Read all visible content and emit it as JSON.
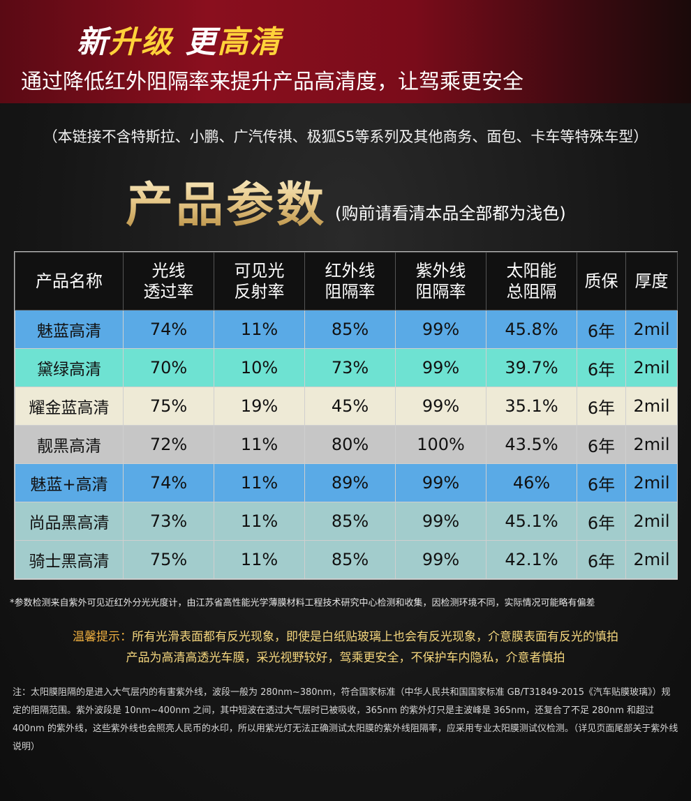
{
  "banner": {
    "title_part1": "新",
    "title_part2": "升级",
    "title_part3": "更",
    "title_part4": "高清",
    "subtitle": "通过降低红外阻隔率来提升产品高清度，让驾乘更安全"
  },
  "notice": "（本链接不含特斯拉、小鹏、广汽传祺、极狐S5等系列及其他商务、面包、卡车等特殊车型）",
  "params": {
    "title": "产品参数",
    "subtitle": "(购前请看清本品全部都为浅色)"
  },
  "table": {
    "headers": [
      [
        "产品名称",
        ""
      ],
      [
        "光线",
        "透过率"
      ],
      [
        "可见光",
        "反射率"
      ],
      [
        "红外线",
        "阻隔率"
      ],
      [
        "紫外线",
        "阻隔率"
      ],
      [
        "太阳能",
        "总阻隔"
      ],
      [
        "质保",
        ""
      ],
      [
        "厚度",
        ""
      ]
    ],
    "rows": [
      {
        "cells": [
          "魅蓝高清",
          "74%",
          "11%",
          "85%",
          "99%",
          "45.8%",
          "6年",
          "2mil"
        ],
        "color": "#5aaae6"
      },
      {
        "cells": [
          "黛绿高清",
          "70%",
          "10%",
          "73%",
          "99%",
          "39.7%",
          "6年",
          "2mil"
        ],
        "color": "#6ee2d2"
      },
      {
        "cells": [
          "耀金蓝高清",
          "75%",
          "19%",
          "45%",
          "99%",
          "35.1%",
          "6年",
          "2mil"
        ],
        "color": "#eeead6"
      },
      {
        "cells": [
          "靓黑高清",
          "72%",
          "11%",
          "80%",
          "100%",
          "43.5%",
          "6年",
          "2mil"
        ],
        "color": "#c6c6c6"
      },
      {
        "cells": [
          "魅蓝+高清",
          "74%",
          "11%",
          "89%",
          "99%",
          "46%",
          "6年",
          "2mil"
        ],
        "color": "#5aaae6"
      },
      {
        "cells": [
          "尚品黑高清",
          "73%",
          "11%",
          "85%",
          "99%",
          "45.1%",
          "6年",
          "2mil"
        ],
        "color": "#a2cccc"
      },
      {
        "cells": [
          "骑士黑高清",
          "75%",
          "11%",
          "85%",
          "99%",
          "42.1%",
          "6年",
          "2mil"
        ],
        "color": "#a2cccc"
      }
    ]
  },
  "disclaimer": "*参数检测来自紫外可见近红外分光光度计，由江苏省高性能光学薄膜材料工程技术研究中心检测和收集，因检测环境不同，实际情况可能略有偏差",
  "tip": {
    "label": "温馨提示：",
    "line1": "所有光滑表面都有反光现象，即使是白纸贴玻璃上也会有反光现象，介意膜表面有反光的慎拍",
    "line2": "产品为高清高透光车膜，采光视野较好，驾乘更安全，不保护车内隐私，介意者慎拍"
  },
  "footnote": "注：太阳膜阻隔的是进入大气层内的有害紫外线，波段一般为 280nm~380nm，符合国家标准（中华人民共和国国家标准 GB/T31849-2015《汽车贴膜玻璃》）规定的阻隔范围。紫外波段是 10nm~400nm 之间，其中短波在透过大气层时已被吸收，365nm 的紫外灯只是主波峰是 365nm，还复合了不足 280nm 和超过 400nm 的紫外线，这些紫外线也会照亮人民币的水印，所以用紫光灯无法正确测试太阳膜的紫外线阻隔率，应采用专业太阳膜测试仪检测。（详见页面尾部关于紫外线说明）"
}
